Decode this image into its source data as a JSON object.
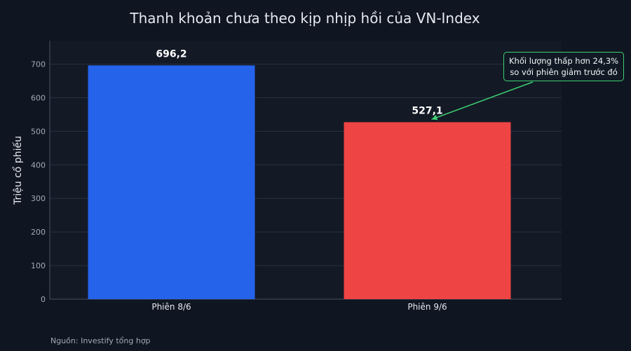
{
  "chart_data": {
    "type": "bar",
    "title": "Thanh khoản chưa theo kịp nhịp hồi của VN-Index",
    "xlabel": "",
    "ylabel": "Triệu cổ phiếu",
    "categories": [
      "Phiên 8/6",
      "Phiên 9/6"
    ],
    "values": [
      696.2,
      527.1
    ],
    "value_labels": [
      "696,2",
      "527,1"
    ],
    "bar_colors": [
      "#2563eb",
      "#ef4444"
    ],
    "ylim": [
      0,
      770
    ],
    "yticks": [
      0,
      100,
      200,
      300,
      400,
      500,
      600,
      700
    ],
    "grid": true,
    "annotation": {
      "line1": "Khối lượng thấp hơn 24,3%",
      "line2": "so với phiên giảm trước đó",
      "target_category": "Phiên 9/6",
      "color": "#3ecf72"
    },
    "source": "Nguồn: Investify tổng hợp"
  }
}
